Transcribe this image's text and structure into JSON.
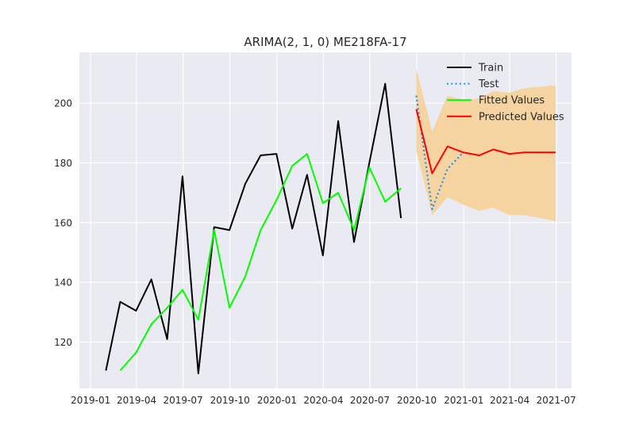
{
  "chart_data": {
    "type": "line",
    "title": "ARIMA(2, 1, 0) ME218FA-17",
    "xlabel": "",
    "ylabel": "",
    "xlim": [
      "2018-12-10",
      "2021-07-31"
    ],
    "ylim": [
      104.5,
      217
    ],
    "grid": true,
    "legend_placement": "top-right",
    "x_ticks": [
      "2019-01",
      "2019-04",
      "2019-07",
      "2019-10",
      "2020-01",
      "2020-04",
      "2020-07",
      "2020-10",
      "2021-01",
      "2021-04",
      "2021-07"
    ],
    "y_ticks": [
      120,
      140,
      160,
      180,
      200
    ],
    "series": [
      {
        "name": "Train",
        "color": "#000000",
        "style": "solid",
        "points": [
          {
            "x": "2019-01-31",
            "y": 110.5
          },
          {
            "x": "2019-02-28",
            "y": 133.5
          },
          {
            "x": "2019-03-31",
            "y": 130.5
          },
          {
            "x": "2019-04-30",
            "y": 141.0
          },
          {
            "x": "2019-05-31",
            "y": 121.0
          },
          {
            "x": "2019-06-30",
            "y": 175.5
          },
          {
            "x": "2019-07-31",
            "y": 109.5
          },
          {
            "x": "2019-08-31",
            "y": 158.5
          },
          {
            "x": "2019-09-30",
            "y": 157.5
          },
          {
            "x": "2019-10-31",
            "y": 173.0
          },
          {
            "x": "2019-11-30",
            "y": 182.5
          },
          {
            "x": "2019-12-31",
            "y": 183.0
          },
          {
            "x": "2020-01-31",
            "y": 158.0
          },
          {
            "x": "2020-02-29",
            "y": 176.0
          },
          {
            "x": "2020-03-31",
            "y": 149.0
          },
          {
            "x": "2020-04-30",
            "y": 194.0
          },
          {
            "x": "2020-05-31",
            "y": 153.5
          },
          {
            "x": "2020-06-30",
            "y": 180.0
          },
          {
            "x": "2020-07-31",
            "y": 206.5
          },
          {
            "x": "2020-08-31",
            "y": 161.5
          }
        ]
      },
      {
        "name": "Test",
        "color": "#1f8fe6",
        "style": "dotted",
        "points": [
          {
            "x": "2020-09-30",
            "y": 202.5
          },
          {
            "x": "2020-10-31",
            "y": 164.5
          },
          {
            "x": "2020-11-30",
            "y": 178.0
          },
          {
            "x": "2020-12-31",
            "y": 183.5
          }
        ]
      },
      {
        "name": "Fitted Values",
        "color": "#00ff00",
        "style": "solid",
        "points": [
          {
            "x": "2019-02-28",
            "y": 110.5
          },
          {
            "x": "2019-03-31",
            "y": 116.5
          },
          {
            "x": "2019-04-30",
            "y": 126.0
          },
          {
            "x": "2019-05-31",
            "y": 131.5
          },
          {
            "x": "2019-06-30",
            "y": 137.5
          },
          {
            "x": "2019-07-31",
            "y": 127.5
          },
          {
            "x": "2019-08-31",
            "y": 157.5
          },
          {
            "x": "2019-09-30",
            "y": 131.5
          },
          {
            "x": "2019-10-31",
            "y": 142.0
          },
          {
            "x": "2019-11-30",
            "y": 157.5
          },
          {
            "x": "2019-12-31",
            "y": 167.5
          },
          {
            "x": "2020-01-31",
            "y": 179.0
          },
          {
            "x": "2020-02-29",
            "y": 183.0
          },
          {
            "x": "2020-03-31",
            "y": 166.5
          },
          {
            "x": "2020-04-30",
            "y": 170.0
          },
          {
            "x": "2020-05-31",
            "y": 157.5
          },
          {
            "x": "2020-06-30",
            "y": 178.5
          },
          {
            "x": "2020-07-31",
            "y": 167.0
          },
          {
            "x": "2020-08-31",
            "y": 171.5
          }
        ]
      },
      {
        "name": "Predicted Values",
        "color": "#ff0000",
        "style": "solid",
        "points": [
          {
            "x": "2020-09-30",
            "y": 198.0
          },
          {
            "x": "2020-10-31",
            "y": 176.5
          },
          {
            "x": "2020-11-30",
            "y": 185.5
          },
          {
            "x": "2020-12-31",
            "y": 183.5
          },
          {
            "x": "2021-01-31",
            "y": 182.5
          },
          {
            "x": "2021-02-28",
            "y": 184.5
          },
          {
            "x": "2021-03-31",
            "y": 183.0
          },
          {
            "x": "2021-04-30",
            "y": 183.5
          },
          {
            "x": "2021-05-31",
            "y": 183.5
          },
          {
            "x": "2021-06-30",
            "y": 183.5
          }
        ]
      }
    ],
    "confidence_band": {
      "color": "#f5d4a2",
      "points": [
        {
          "x": "2020-09-30",
          "lower": 184.0,
          "upper": 211.5
        },
        {
          "x": "2020-10-31",
          "lower": 162.5,
          "upper": 190.5
        },
        {
          "x": "2020-11-30",
          "lower": 168.5,
          "upper": 202.5
        },
        {
          "x": "2020-12-31",
          "lower": 166.0,
          "upper": 201.0
        },
        {
          "x": "2021-01-31",
          "lower": 164.0,
          "upper": 201.5
        },
        {
          "x": "2021-02-28",
          "lower": 165.0,
          "upper": 204.0
        },
        {
          "x": "2021-03-31",
          "lower": 162.5,
          "upper": 203.5
        },
        {
          "x": "2021-04-30",
          "lower": 162.5,
          "upper": 205.0
        },
        {
          "x": "2021-05-31",
          "lower": 161.5,
          "upper": 205.5
        },
        {
          "x": "2021-06-30",
          "lower": 160.5,
          "upper": 206.0
        }
      ]
    }
  }
}
